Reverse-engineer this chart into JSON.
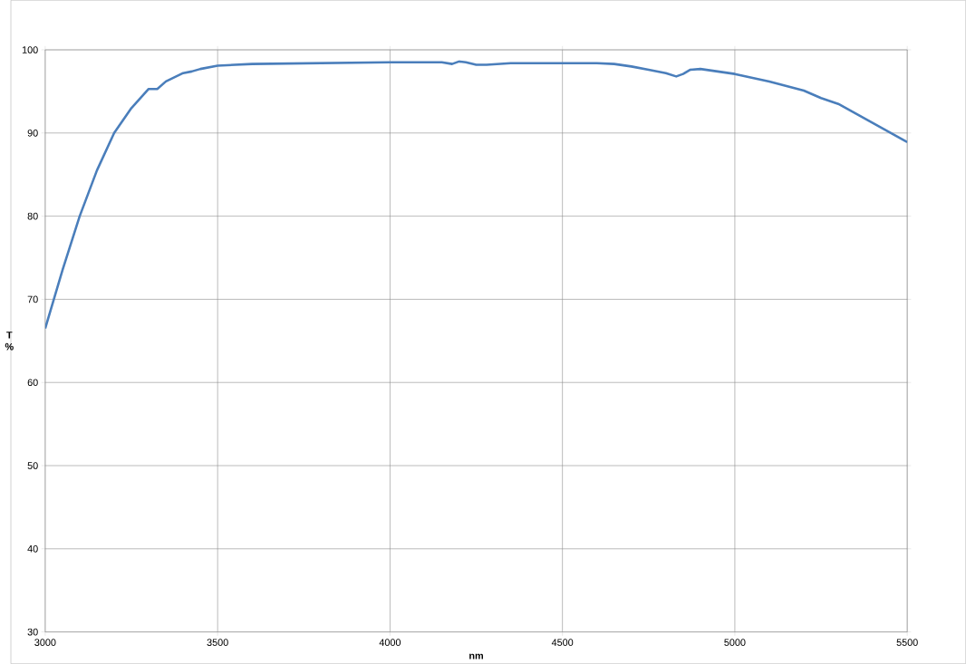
{
  "chart_data": {
    "type": "line",
    "xlabel": "nm",
    "ylabel": "T %",
    "xlim": [
      3000,
      5500
    ],
    "ylim": [
      30,
      100
    ],
    "xticks": [
      3000,
      3500,
      4000,
      4500,
      5000,
      5500
    ],
    "yticks": [
      30,
      40,
      50,
      60,
      70,
      80,
      90,
      100
    ],
    "grid": true,
    "marker": "none",
    "line_style": "solid",
    "series": [
      {
        "color": "#4a7ebb",
        "x": [
          3000,
          3050,
          3100,
          3150,
          3200,
          3250,
          3300,
          3325,
          3350,
          3400,
          3425,
          3450,
          3500,
          3600,
          3800,
          4000,
          4150,
          4180,
          4200,
          4220,
          4250,
          4280,
          4350,
          4500,
          4600,
          4650,
          4700,
          4750,
          4800,
          4830,
          4850,
          4870,
          4900,
          5000,
          5100,
          5200,
          5250,
          5300,
          5400,
          5500
        ],
        "values": [
          66.5,
          73.5,
          80,
          85.5,
          90,
          93,
          95.3,
          95.3,
          96.2,
          97.2,
          97.4,
          97.7,
          98.1,
          98.3,
          98.4,
          98.5,
          98.5,
          98.3,
          98.6,
          98.5,
          98.2,
          98.2,
          98.4,
          98.4,
          98.4,
          98.3,
          98,
          97.6,
          97.2,
          96.8,
          97.1,
          97.6,
          97.7,
          97.1,
          96.2,
          95.1,
          94.2,
          93.5,
          91.2,
          88.9
        ]
      }
    ]
  }
}
